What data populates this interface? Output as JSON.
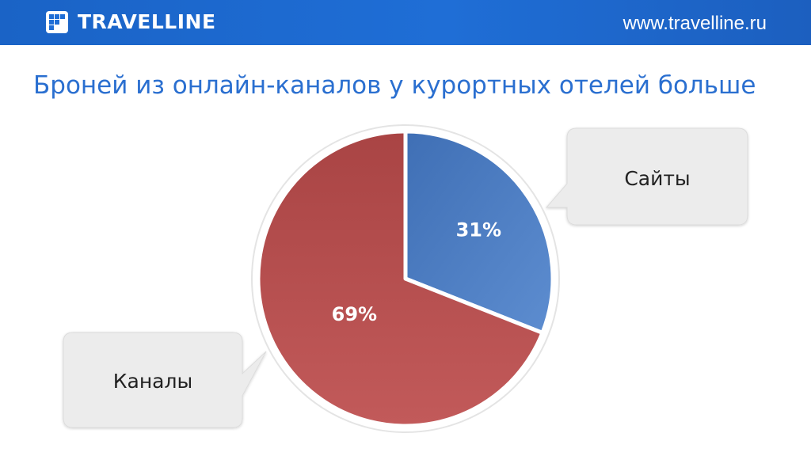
{
  "header": {
    "logo_text": "TRAVELLINE",
    "url": "www.travelline.ru"
  },
  "slide": {
    "title": "Броней из онлайн-каналов у курортных отелей больше"
  },
  "colors": {
    "header_bg": "#1f6ed6",
    "title": "#2a6fd0",
    "slice_channels": "#b84a4a",
    "slice_sites": "#4f7fc4",
    "callout_bg": "#ececec"
  },
  "chart_data": {
    "type": "pie",
    "title": "",
    "slices": [
      {
        "name": "Сайты",
        "value": 31,
        "label": "31%",
        "color": "#4f7fc4"
      },
      {
        "name": "Каналы",
        "value": 69,
        "label": "69%",
        "color": "#b84a4a"
      }
    ],
    "start_angle_deg": 0,
    "direction": "clockwise",
    "legend": "callouts"
  }
}
